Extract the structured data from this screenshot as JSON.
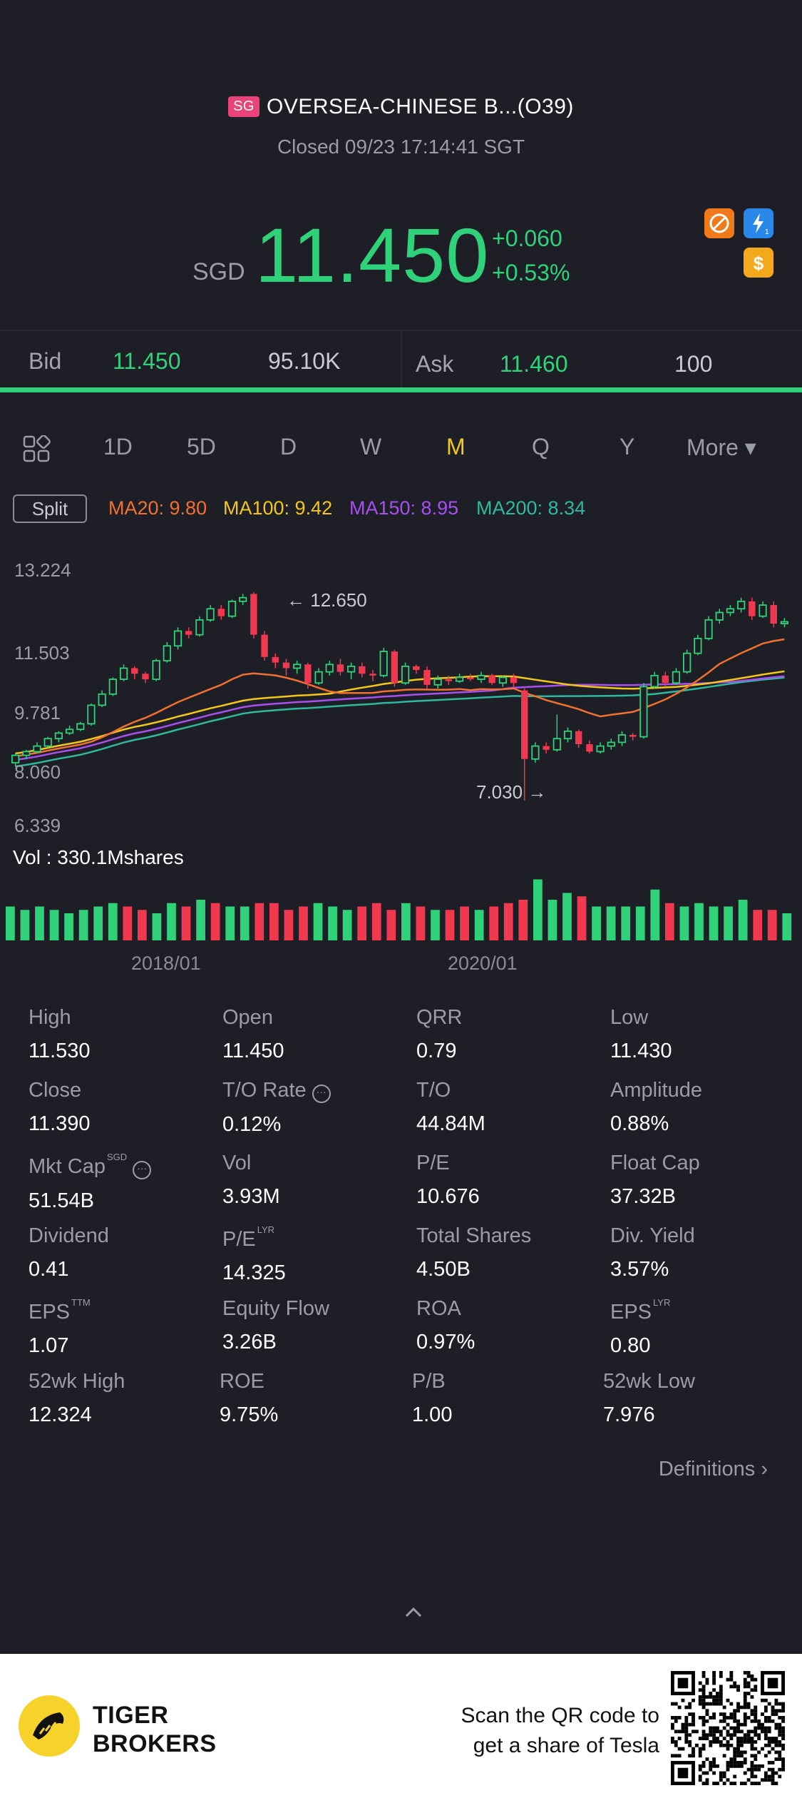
{
  "header": {
    "market_badge": "SG",
    "stock_name": "OVERSEA-CHINESE B...(O39)",
    "status": "Closed 09/23 17:14:41 SGT",
    "currency": "SGD",
    "price": "11.450",
    "change": "+0.060",
    "change_pct": "+0.53%",
    "colors": {
      "up": "#2fd179",
      "down": "#f0384f",
      "accent": "#f4c51b"
    }
  },
  "quote": {
    "bid_label": "Bid",
    "bid_price": "11.450",
    "bid_size": "95.10K",
    "ask_label": "Ask",
    "ask_price": "11.460",
    "ask_size": "100"
  },
  "tabs": {
    "grid_icon": "grid-icon",
    "items": [
      "1D",
      "5D",
      "D",
      "W",
      "M",
      "Q",
      "Y",
      "More ▾"
    ],
    "active": "M"
  },
  "indicators": {
    "split_label": "Split",
    "ma20": "MA20: 9.80",
    "ma100": "MA100: 9.42",
    "ma150": "MA150: 8.95",
    "ma200": "MA200: 8.34"
  },
  "chart_data": {
    "type": "candlestick",
    "y_ticks": [
      "13.224",
      "11.503",
      "9.781",
      "8.060",
      "6.339"
    ],
    "ylim": [
      6.339,
      13.224
    ],
    "annotations": {
      "high": "12.650",
      "low": "7.030"
    },
    "volume_label": "Vol  : 330.1Mshares",
    "x_ticks": [
      "2018/01",
      "2020/01"
    ],
    "candles": [
      [
        8.05,
        8.25,
        7.95,
        8.3,
        "up"
      ],
      [
        8.25,
        8.35,
        8.15,
        8.4,
        "up"
      ],
      [
        8.35,
        8.5,
        8.3,
        8.6,
        "up"
      ],
      [
        8.5,
        8.7,
        8.45,
        8.75,
        "up"
      ],
      [
        8.7,
        8.85,
        8.6,
        8.9,
        "up"
      ],
      [
        8.85,
        8.95,
        8.8,
        9.05,
        "up"
      ],
      [
        8.95,
        9.1,
        8.9,
        9.15,
        "up"
      ],
      [
        9.1,
        9.6,
        9.05,
        9.65,
        "up"
      ],
      [
        9.6,
        9.9,
        9.55,
        10.0,
        "up"
      ],
      [
        9.9,
        10.3,
        9.85,
        10.35,
        "up"
      ],
      [
        10.3,
        10.6,
        10.25,
        10.7,
        "up"
      ],
      [
        10.6,
        10.45,
        10.3,
        10.65,
        "down"
      ],
      [
        10.45,
        10.3,
        10.2,
        10.5,
        "down"
      ],
      [
        10.3,
        10.8,
        10.25,
        10.85,
        "up"
      ],
      [
        10.8,
        11.2,
        10.75,
        11.3,
        "up"
      ],
      [
        11.2,
        11.6,
        11.1,
        11.7,
        "up"
      ],
      [
        11.6,
        11.5,
        11.4,
        11.7,
        "down"
      ],
      [
        11.5,
        11.9,
        11.45,
        12.0,
        "up"
      ],
      [
        11.9,
        12.2,
        11.85,
        12.3,
        "up"
      ],
      [
        12.2,
        12.0,
        11.9,
        12.3,
        "down"
      ],
      [
        12.0,
        12.4,
        11.95,
        12.45,
        "up"
      ],
      [
        12.4,
        12.5,
        12.3,
        12.6,
        "up"
      ],
      [
        12.6,
        11.5,
        11.4,
        12.65,
        "down"
      ],
      [
        11.5,
        10.9,
        10.8,
        11.6,
        "down"
      ],
      [
        10.9,
        10.75,
        10.6,
        11.0,
        "down"
      ],
      [
        10.75,
        10.6,
        10.4,
        10.85,
        "down"
      ],
      [
        10.6,
        10.7,
        10.45,
        10.8,
        "up"
      ],
      [
        10.7,
        10.2,
        10.05,
        10.75,
        "down"
      ],
      [
        10.2,
        10.5,
        10.15,
        10.6,
        "up"
      ],
      [
        10.5,
        10.7,
        10.4,
        10.8,
        "up"
      ],
      [
        10.7,
        10.5,
        10.4,
        10.85,
        "down"
      ],
      [
        10.5,
        10.65,
        10.3,
        10.75,
        "up"
      ],
      [
        10.65,
        10.45,
        10.35,
        10.75,
        "down"
      ],
      [
        10.45,
        10.4,
        10.25,
        10.55,
        "down"
      ],
      [
        10.4,
        11.05,
        10.35,
        11.15,
        "up"
      ],
      [
        11.05,
        10.2,
        10.1,
        11.1,
        "down"
      ],
      [
        10.2,
        10.65,
        10.15,
        10.75,
        "up"
      ],
      [
        10.65,
        10.55,
        10.45,
        10.7,
        "down"
      ],
      [
        10.55,
        10.15,
        10.05,
        10.65,
        "down"
      ],
      [
        10.15,
        10.3,
        10.05,
        10.4,
        "up"
      ],
      [
        10.3,
        10.25,
        10.15,
        10.4,
        "down"
      ],
      [
        10.25,
        10.35,
        10.2,
        10.45,
        "up"
      ],
      [
        10.35,
        10.3,
        10.25,
        10.45,
        "down"
      ],
      [
        10.3,
        10.4,
        10.2,
        10.5,
        "up"
      ],
      [
        10.4,
        10.2,
        10.15,
        10.45,
        "down"
      ],
      [
        10.2,
        10.35,
        10.1,
        10.4,
        "up"
      ],
      [
        10.35,
        10.2,
        10.1,
        10.45,
        "down"
      ],
      [
        10.0,
        8.15,
        7.03,
        10.05,
        "down"
      ],
      [
        8.15,
        8.5,
        8.05,
        8.6,
        "up"
      ],
      [
        8.5,
        8.4,
        8.3,
        8.6,
        "down"
      ],
      [
        8.4,
        8.7,
        8.35,
        9.35,
        "up"
      ],
      [
        8.7,
        8.9,
        8.6,
        9.0,
        "up"
      ],
      [
        8.9,
        8.55,
        8.45,
        8.95,
        "down"
      ],
      [
        8.55,
        8.35,
        8.3,
        8.65,
        "down"
      ],
      [
        8.35,
        8.5,
        8.3,
        8.6,
        "up"
      ],
      [
        8.5,
        8.6,
        8.4,
        8.7,
        "up"
      ],
      [
        8.6,
        8.8,
        8.5,
        8.9,
        "up"
      ],
      [
        8.8,
        8.75,
        8.65,
        8.85,
        "down"
      ],
      [
        8.75,
        10.1,
        8.7,
        10.2,
        "up"
      ],
      [
        10.1,
        10.4,
        10.05,
        10.5,
        "up"
      ],
      [
        10.4,
        10.2,
        10.1,
        10.5,
        "down"
      ],
      [
        10.2,
        10.5,
        10.15,
        10.6,
        "up"
      ],
      [
        10.5,
        11.0,
        10.45,
        11.1,
        "up"
      ],
      [
        11.0,
        11.4,
        10.95,
        11.5,
        "up"
      ],
      [
        11.4,
        11.9,
        11.35,
        12.0,
        "up"
      ],
      [
        11.9,
        12.1,
        11.8,
        12.2,
        "up"
      ],
      [
        12.1,
        12.2,
        12.0,
        12.3,
        "up"
      ],
      [
        12.2,
        12.4,
        12.1,
        12.5,
        "up"
      ],
      [
        12.4,
        12.0,
        11.9,
        12.5,
        "down"
      ],
      [
        12.0,
        12.3,
        11.95,
        12.4,
        "up"
      ],
      [
        12.3,
        11.8,
        11.7,
        12.4,
        "down"
      ],
      [
        11.8,
        11.85,
        11.7,
        11.95,
        "up"
      ]
    ],
    "ma_series": {
      "ma20_color": "#f07030",
      "ma100_color": "#f4c51b",
      "ma150_color": "#a84ff0",
      "ma200_color": "#2fb8a0"
    }
  },
  "stats": {
    "items": [
      {
        "k": "High",
        "v": "11.530"
      },
      {
        "k": "Open",
        "v": "11.450"
      },
      {
        "k": "QRR",
        "v": "0.79"
      },
      {
        "k": "Low",
        "v": "11.430"
      },
      {
        "k": "Close",
        "v": "11.390"
      },
      {
        "k": "T/O Rate",
        "v": "0.12%"
      },
      {
        "k": "T/O",
        "v": "44.84M"
      },
      {
        "k": "Amplitude",
        "v": "0.88%"
      },
      {
        "k": "Mkt Cap",
        "v": "51.54B"
      },
      {
        "k": "Vol",
        "v": "3.93M"
      },
      {
        "k": "P/E",
        "v": "10.676"
      },
      {
        "k": "Float Cap",
        "v": "37.32B"
      },
      {
        "k": "Dividend",
        "v": "0.41"
      },
      {
        "k": "P/E",
        "v": "14.325"
      },
      {
        "k": "Total Shares",
        "v": "4.50B"
      },
      {
        "k": "Div. Yield",
        "v": "3.57%"
      },
      {
        "k": "EPS",
        "v": "1.07"
      },
      {
        "k": "Equity Flow",
        "v": "3.26B"
      },
      {
        "k": "ROA",
        "v": "0.97%"
      },
      {
        "k": "EPS",
        "v": "0.80"
      },
      {
        "k": "52wk High",
        "v": "12.324"
      },
      {
        "k": "ROE",
        "v": "9.75%"
      },
      {
        "k": "P/B",
        "v": "1.00"
      },
      {
        "k": "52wk Low",
        "v": "7.976"
      }
    ],
    "sup_sgd": "SGD",
    "sup_lyr": "LYR",
    "sup_ttm": "TTM",
    "definitions": "Definitions"
  },
  "footer": {
    "brand_line1": "TIGER",
    "brand_line2": "BROKERS",
    "scan_line1": "Scan the QR code to",
    "scan_line2": "get a share of Tesla"
  }
}
